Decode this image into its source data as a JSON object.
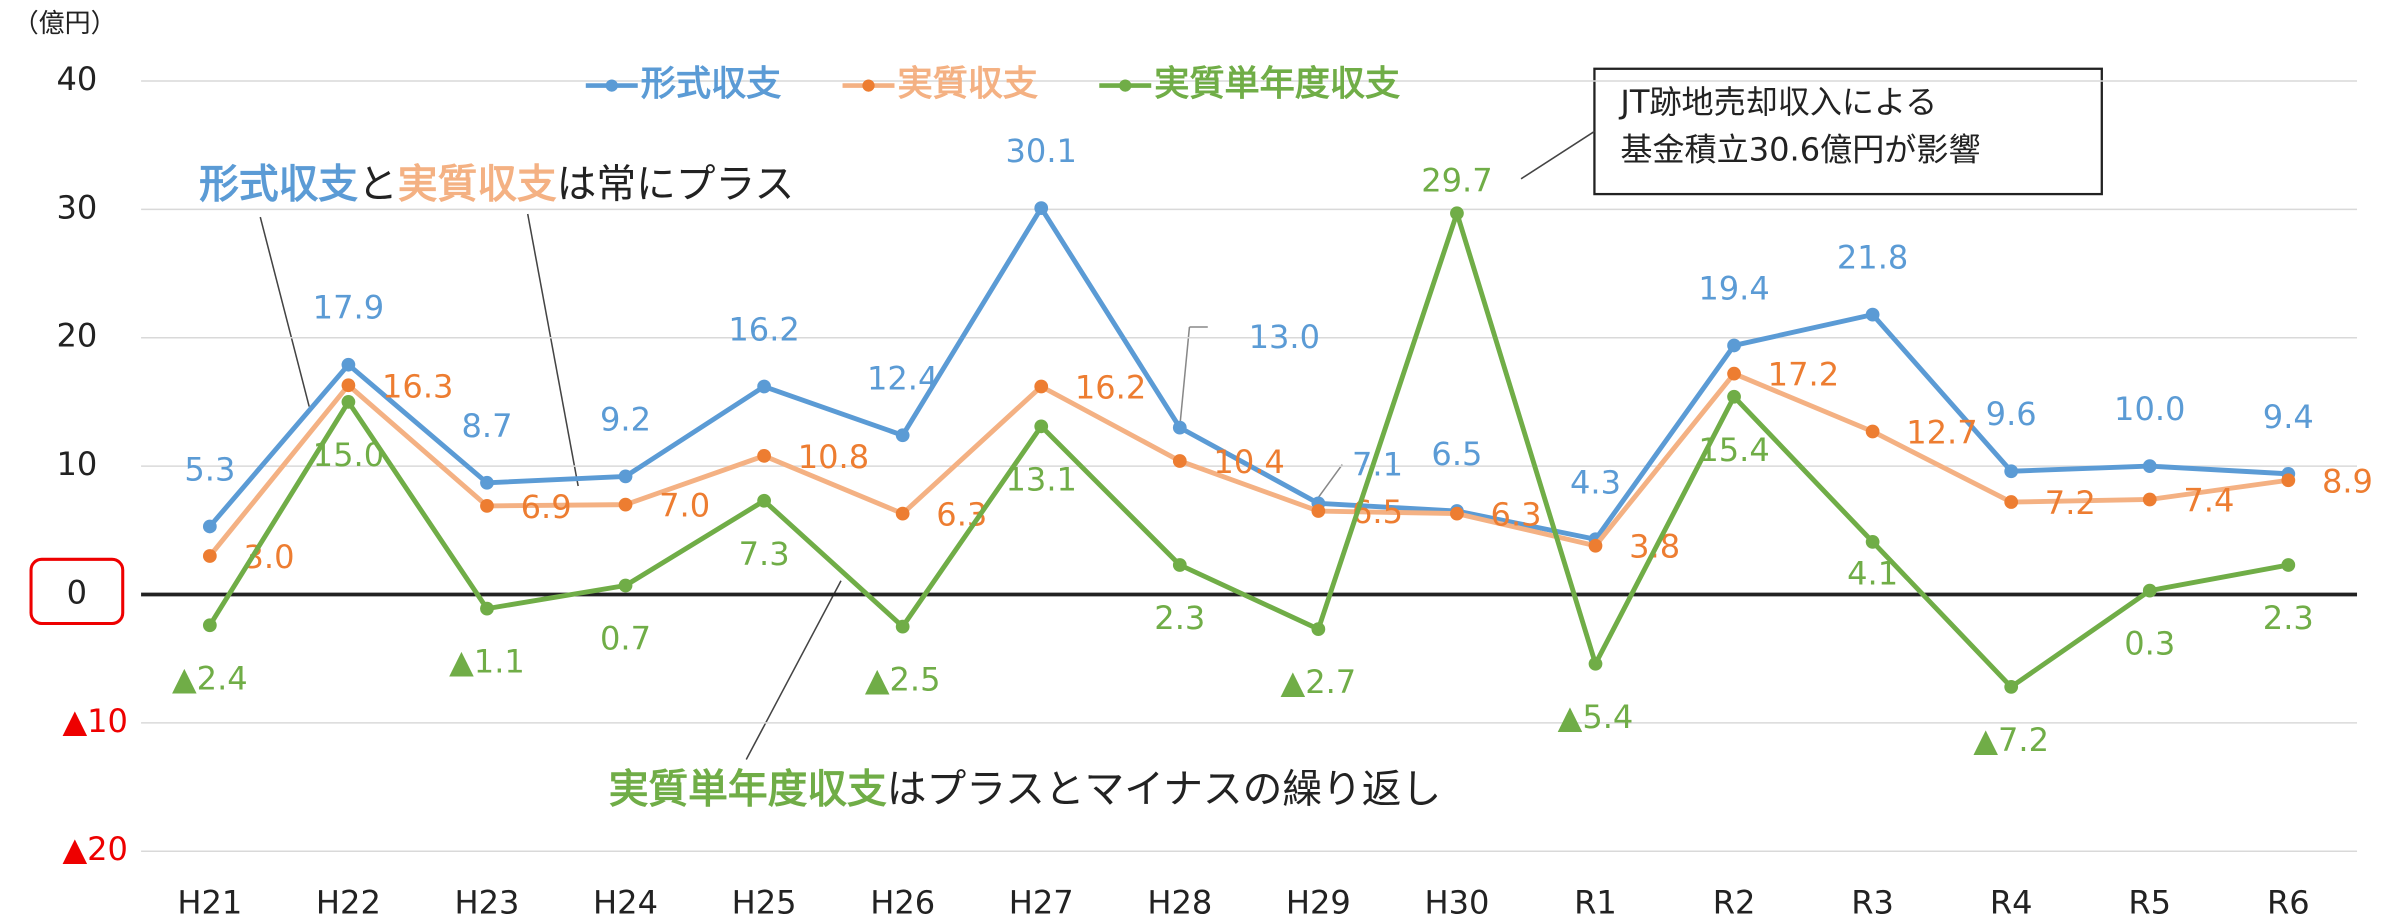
{
  "chart_data": {
    "type": "line",
    "unit": "（億円）",
    "categories": [
      "H21",
      "H22",
      "H23",
      "H24",
      "H25",
      "H26",
      "H27",
      "H28",
      "H29",
      "H30",
      "R1",
      "R2",
      "R3",
      "R4",
      "R5",
      "R6"
    ],
    "series": [
      {
        "name": "形式収支",
        "color": "#5b9bd5",
        "values": [
          5.3,
          17.9,
          8.7,
          9.2,
          16.2,
          12.4,
          30.1,
          13.0,
          7.1,
          6.5,
          4.3,
          19.4,
          21.8,
          9.6,
          10.0,
          9.4
        ],
        "value_labels": [
          "5.3",
          "17.9",
          "8.7",
          "9.2",
          "16.2",
          "12.4",
          "30.1",
          "13.0",
          "7.1",
          "6.5",
          "4.3",
          "19.4",
          "21.8",
          "9.6",
          "10.0",
          "9.4"
        ]
      },
      {
        "name": "実質収支",
        "color": "#ed7d31",
        "values": [
          3.0,
          16.3,
          6.9,
          7.0,
          10.8,
          6.3,
          16.2,
          10.4,
          6.5,
          6.3,
          3.8,
          17.2,
          12.7,
          7.2,
          7.4,
          8.9
        ],
        "value_labels": [
          "3.0",
          "16.3",
          "6.9",
          "7.0",
          "10.8",
          "6.3",
          "16.2",
          "10.4",
          "6.5",
          "6.3",
          "3.8",
          "17.2",
          "12.7",
          "7.2",
          "7.4",
          "8.9"
        ]
      },
      {
        "name": "実質単年度収支",
        "color": "#70ad47",
        "values": [
          -2.4,
          15.0,
          -1.1,
          0.7,
          7.3,
          -2.5,
          13.1,
          2.3,
          -2.7,
          29.7,
          -5.4,
          15.4,
          4.1,
          -7.2,
          0.3,
          2.3
        ],
        "value_labels": [
          "▲2.4",
          "15.0",
          "▲1.1",
          "0.7",
          "7.3",
          "▲2.5",
          "13.1",
          "2.3",
          "▲2.7",
          "29.7",
          "▲5.4",
          "15.4",
          "4.1",
          "▲7.2",
          "0.3",
          "2.3"
        ]
      }
    ],
    "ylim": [
      -20,
      40
    ],
    "yticks": [
      40,
      30,
      20,
      10,
      0,
      {
        "value": -10,
        "label": "▲10"
      },
      {
        "value": -20,
        "label": "▲20"
      }
    ],
    "grid": true,
    "legend": "top",
    "annotations": {
      "callout": [
        "JT跡地売却収入による",
        "基金積立30.6億円が影響"
      ],
      "note1": [
        "形式収支",
        "と",
        "実質収支",
        "は常にプラス"
      ],
      "note2": [
        "実質単年度収支",
        "はプラスとマイナスの繰り返し"
      ]
    }
  }
}
